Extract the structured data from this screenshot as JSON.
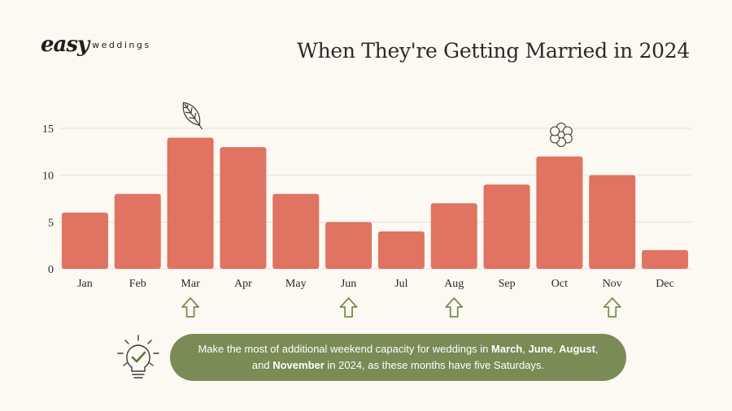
{
  "brand": {
    "script": "easy",
    "sub": "weddings"
  },
  "colors": {
    "bar": "#E07362",
    "accent": "#7A8B56",
    "background": "#FBF9F1",
    "grid": "#E3E1D8"
  },
  "icons": {
    "march_marker": "leaf-icon",
    "october_marker": "flower-icon",
    "tip": "lightbulb-check-icon",
    "five_saturdays": "arrow-up-icon"
  },
  "chart_data": {
    "type": "bar",
    "title": "When They're Getting Married in 2024",
    "categories": [
      "Jan",
      "Feb",
      "Mar",
      "Apr",
      "May",
      "Jun",
      "Jul",
      "Aug",
      "Sep",
      "Oct",
      "Nov",
      "Dec"
    ],
    "values": [
      6,
      8,
      14,
      13,
      8,
      5,
      4,
      7,
      9,
      12,
      10,
      2
    ],
    "yticks": [
      0,
      5,
      10,
      15
    ],
    "ylim": [
      0,
      15
    ],
    "grid": true,
    "xlabel": "",
    "ylabel": "",
    "highlighted_months": [
      "Mar",
      "Jun",
      "Aug",
      "Nov"
    ]
  },
  "tip": {
    "t1": "Make the most of additional weekend capacity for weddings in ",
    "m1": "March",
    "t2": ", ",
    "m2": "June",
    "t3": ", ",
    "m3": "August",
    "t4": ",",
    "t5": "and ",
    "m4": "November",
    "t6": " in 2024, as these months have five Saturdays."
  }
}
